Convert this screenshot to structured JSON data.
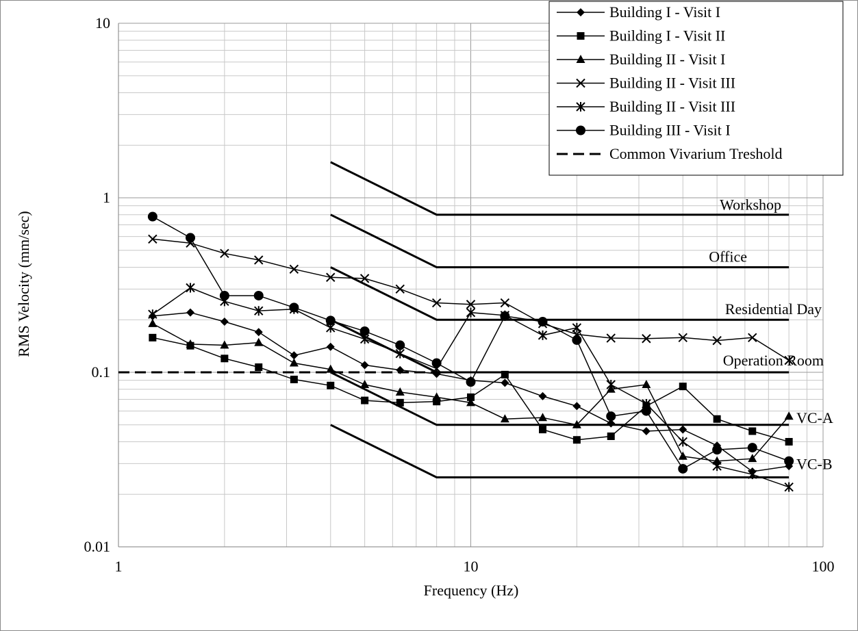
{
  "chart_data": {
    "type": "line",
    "title": "",
    "xlabel": "Frequency (Hz)",
    "ylabel": "RMS Velocity (mm/sec)",
    "x_scale": "log",
    "y_scale": "log",
    "xlim": [
      1,
      100
    ],
    "ylim": [
      0.01,
      10
    ],
    "x_ticks": [
      1,
      10,
      100
    ],
    "x_tick_labels": [
      "1",
      "10",
      "100"
    ],
    "y_ticks": [
      0.01,
      0.1,
      1,
      10
    ],
    "y_tick_labels": [
      "0.01",
      "0.1",
      "1",
      "10"
    ],
    "grid": true,
    "legend_position": "top-right",
    "color": "#000000",
    "x": [
      1.25,
      1.6,
      2,
      2.5,
      3.15,
      4,
      5,
      6.3,
      8,
      10,
      12.5,
      16,
      20,
      25,
      31.5,
      40,
      50,
      63,
      80
    ],
    "series": [
      {
        "name": "Building I - Visit I",
        "marker": "diamond",
        "values": [
          0.21,
          0.22,
          0.195,
          0.17,
          0.125,
          0.14,
          0.11,
          0.103,
          0.098,
          0.09,
          0.087,
          0.073,
          0.064,
          0.051,
          0.046,
          0.047,
          0.038,
          0.027,
          0.029
        ]
      },
      {
        "name": "Building I - Visit II",
        "marker": "square",
        "values": [
          0.158,
          0.142,
          0.12,
          0.107,
          0.091,
          0.084,
          0.069,
          0.067,
          0.068,
          0.072,
          0.097,
          0.047,
          0.041,
          0.043,
          0.064,
          0.083,
          0.054,
          0.046,
          0.04
        ]
      },
      {
        "name": "Building II - Visit I",
        "marker": "triangle",
        "values": [
          0.19,
          0.145,
          0.143,
          0.148,
          0.113,
          0.104,
          0.085,
          0.077,
          0.072,
          0.067,
          0.054,
          0.055,
          0.05,
          0.08,
          0.085,
          0.033,
          0.031,
          0.032,
          0.056
        ]
      },
      {
        "name": "Building II - Visit III",
        "marker": "x",
        "values": [
          0.58,
          0.55,
          0.48,
          0.44,
          0.39,
          0.35,
          0.345,
          0.3,
          0.25,
          0.245,
          0.25,
          0.19,
          0.165,
          0.157,
          0.156,
          0.158,
          0.152,
          0.158,
          0.117
        ]
      },
      {
        "name": "Building II - Visit III",
        "marker": "asterisk",
        "values": [
          0.215,
          0.305,
          0.255,
          0.225,
          0.23,
          0.18,
          0.155,
          0.128,
          0.105,
          0.22,
          0.212,
          0.163,
          0.18,
          0.085,
          0.066,
          0.04,
          0.029,
          0.026,
          0.022
        ]
      },
      {
        "name": "Building III - Visit I",
        "marker": "circle",
        "values": [
          0.78,
          0.59,
          0.275,
          0.275,
          0.235,
          0.198,
          0.172,
          0.143,
          0.113,
          0.088,
          0.21,
          0.195,
          0.153,
          0.056,
          0.06,
          0.028,
          0.036,
          0.037,
          0.031
        ]
      }
    ],
    "threshold_lines": [
      {
        "label": "Workshop",
        "points": [
          [
            4,
            1.6
          ],
          [
            8,
            0.8
          ],
          [
            80,
            0.8
          ]
        ]
      },
      {
        "label": "Office",
        "points": [
          [
            4,
            0.8
          ],
          [
            8,
            0.4
          ],
          [
            80,
            0.4
          ]
        ]
      },
      {
        "label": "Residential Day",
        "points": [
          [
            4,
            0.4
          ],
          [
            8,
            0.2
          ],
          [
            80,
            0.2
          ]
        ]
      },
      {
        "label": "Operation Room",
        "points": [
          [
            4,
            0.2
          ],
          [
            8,
            0.1
          ],
          [
            80,
            0.1
          ]
        ]
      },
      {
        "label": "VC-A",
        "points": [
          [
            4,
            0.1
          ],
          [
            8,
            0.05
          ],
          [
            80,
            0.05
          ]
        ]
      },
      {
        "label": "VC-B",
        "points": [
          [
            4,
            0.05
          ],
          [
            8,
            0.025
          ],
          [
            80,
            0.025
          ]
        ]
      }
    ],
    "reference_line": {
      "name": "Common Vivarium Treshold",
      "style": "dashed",
      "y": 0.1,
      "x_range": [
        1,
        80
      ]
    }
  }
}
